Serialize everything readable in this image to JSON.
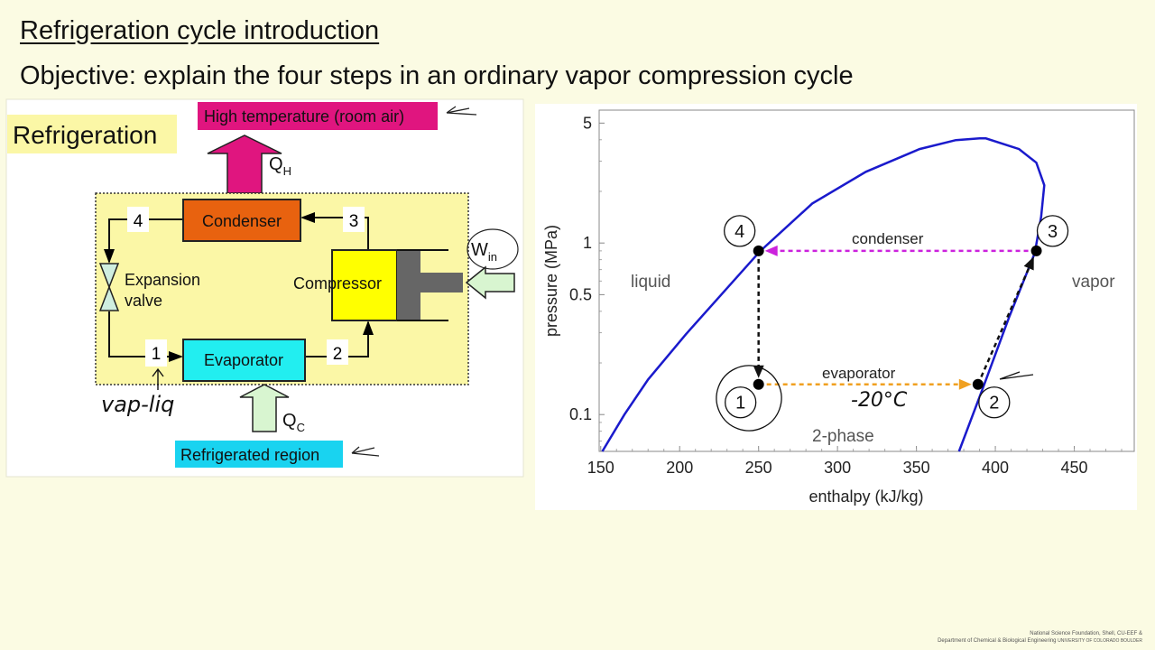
{
  "slide": {
    "title": "Refrigeration cycle introduction",
    "objective": "Objective:  explain the four steps in an ordinary vapor compression cycle"
  },
  "diagram": {
    "heading": "Refrigeration",
    "hot_region": "High temperature (room air)",
    "heat_out": {
      "symbol": "Q",
      "subscript": "H"
    },
    "heat_in": {
      "symbol": "Q",
      "subscript": "C"
    },
    "work_in": {
      "symbol": "W",
      "subscript": "in"
    },
    "condenser": "Condenser",
    "compressor": "Compressor",
    "evaporator": "Evaporator",
    "expansion_valve": [
      "Expansion",
      "valve"
    ],
    "states": [
      "1",
      "2",
      "3",
      "4"
    ],
    "cold_region": "Refrigerated region",
    "handwritten_note": "vap-liq",
    "colors": {
      "hot": "#e0157f",
      "condenser": "#e8620f",
      "evaporator": "#22eef0",
      "compressor": "#ffff00",
      "piston": "#666666",
      "cold": "#19d3f0",
      "arrow_green": "#d8f5d0",
      "system_box": "#fbf7a6"
    }
  },
  "chart_data": {
    "type": "line",
    "xlabel": "enthalpy (kJ/kg)",
    "ylabel": "pressure (MPa)",
    "xlim": [
      149,
      488
    ],
    "ylim": [
      0.061,
      5.95
    ],
    "yscale": "log",
    "x_ticks": [
      150,
      200,
      250,
      300,
      350,
      400,
      450
    ],
    "y_ticks": [
      0.1,
      0.5,
      1,
      5
    ],
    "grid": false,
    "series": [
      {
        "color": "#1a1acc",
        "points": [
          [
            151,
            0.061
          ],
          [
            165,
            0.1
          ],
          [
            180,
            0.16
          ],
          [
            204,
            0.294
          ],
          [
            227,
            0.507
          ],
          [
            251,
            0.897
          ],
          [
            284,
            1.7
          ],
          [
            318,
            2.6
          ],
          [
            352,
            3.53
          ],
          [
            375,
            3.98
          ],
          [
            390,
            4.07
          ],
          [
            394,
            4.07
          ],
          [
            415,
            3.53
          ],
          [
            426,
            2.94
          ],
          [
            431,
            2.17
          ],
          [
            429,
            1.42
          ],
          [
            425,
            0.875
          ],
          [
            409,
            0.375
          ],
          [
            392,
            0.142
          ],
          [
            377,
            0.061
          ]
        ]
      }
    ],
    "cycle_points": [
      {
        "label": "1",
        "h": 250,
        "p": 0.15
      },
      {
        "label": "2",
        "h": 389,
        "p": 0.15
      },
      {
        "label": "3",
        "h": 426,
        "p": 0.9
      },
      {
        "label": "4",
        "h": 250,
        "p": 0.9
      }
    ],
    "processes": [
      {
        "from": "4",
        "to": "1",
        "color": "#111111"
      },
      {
        "from": "1",
        "to": "2",
        "color": "#f0a020",
        "label": "evaporator"
      },
      {
        "from": "2",
        "to": "3",
        "color": "#111111"
      },
      {
        "from": "3",
        "to": "4",
        "color": "#cc22dd",
        "label": "condenser"
      }
    ],
    "region_labels": [
      "liquid",
      "vapor",
      "2-phase"
    ],
    "handwritten_note": "-20°C"
  },
  "footer": {
    "line1": "National Science Foundation, Shell, CU-EEF &",
    "line2": "Department of Chemical & Biological Engineering",
    "logo_text": "UNIVERSITY OF COLORADO BOULDER"
  }
}
